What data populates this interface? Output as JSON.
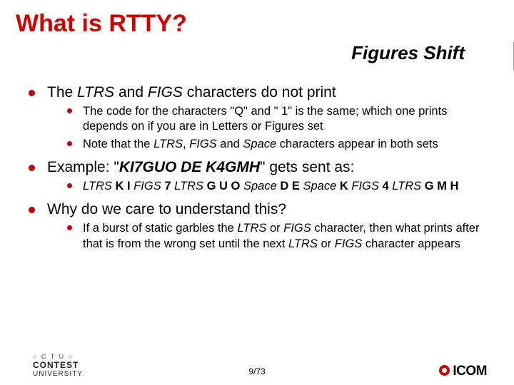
{
  "title": "What is RTTY?",
  "subtitle": "Figures Shift",
  "bullets": [
    {
      "text_parts": [
        {
          "t": "The "
        },
        {
          "t": "LTRS",
          "i": true
        },
        {
          "t": " and "
        },
        {
          "t": "FIGS",
          "i": true
        },
        {
          "t": " characters do not print"
        }
      ],
      "sub": [
        {
          "parts": [
            {
              "t": "The code for the characters \"Q\" and \" 1\" is the same; which one prints depends on if you are in Letters or Figures set"
            }
          ]
        },
        {
          "parts": [
            {
              "t": "Note that the "
            },
            {
              "t": "LTRS",
              "i": true
            },
            {
              "t": ", "
            },
            {
              "t": "FIGS",
              "i": true
            },
            {
              "t": " and "
            },
            {
              "t": "Space",
              "i": true
            },
            {
              "t": " characters appear in both sets"
            }
          ]
        }
      ]
    },
    {
      "text_parts": [
        {
          "t": "Example: \""
        },
        {
          "t": "KI7GUO DE K4GMH",
          "b": true,
          "i": true
        },
        {
          "t": "\" gets sent as:"
        }
      ],
      "sub": [
        {
          "parts": [
            {
              "t": "LTRS",
              "i": true
            },
            {
              "t": " "
            },
            {
              "t": "K I ",
              "b": true
            },
            {
              "t": "FIGS",
              "i": true
            },
            {
              "t": " "
            },
            {
              "t": "7 ",
              "b": true
            },
            {
              "t": "LTRS",
              "i": true
            },
            {
              "t": " "
            },
            {
              "t": "G U O ",
              "b": true
            },
            {
              "t": "Space",
              "i": true
            },
            {
              "t": " "
            },
            {
              "t": "D E ",
              "b": true
            },
            {
              "t": "Space",
              "i": true
            },
            {
              "t": " "
            },
            {
              "t": "K ",
              "b": true
            },
            {
              "t": "FIGS",
              "i": true
            },
            {
              "t": " "
            },
            {
              "t": "4 ",
              "b": true
            },
            {
              "t": "LTRS",
              "i": true
            },
            {
              "t": " "
            },
            {
              "t": "G M H",
              "b": true
            }
          ]
        }
      ]
    },
    {
      "text_parts": [
        {
          "t": "Why do we care to understand this?"
        }
      ],
      "sub": [
        {
          "parts": [
            {
              "t": "If a burst of static garbles the "
            },
            {
              "t": "LTRS",
              "i": true
            },
            {
              "t": " or "
            },
            {
              "t": "FIGS",
              "i": true
            },
            {
              "t": " character, then what prints after that is from the wrong set until the next "
            },
            {
              "t": "LTRS",
              "i": true
            },
            {
              "t": " or "
            },
            {
              "t": "FIGS",
              "i": true
            },
            {
              "t": " character appears"
            }
          ]
        }
      ]
    }
  ],
  "footer": {
    "ctu": "○ C T U ○",
    "contest": "CONTEST",
    "university": "UNIVERSITY",
    "page": "9/73",
    "icom": "ICOM"
  },
  "colors": {
    "accent": "#cc0000",
    "text": "#000000",
    "background": "#ffffff"
  }
}
